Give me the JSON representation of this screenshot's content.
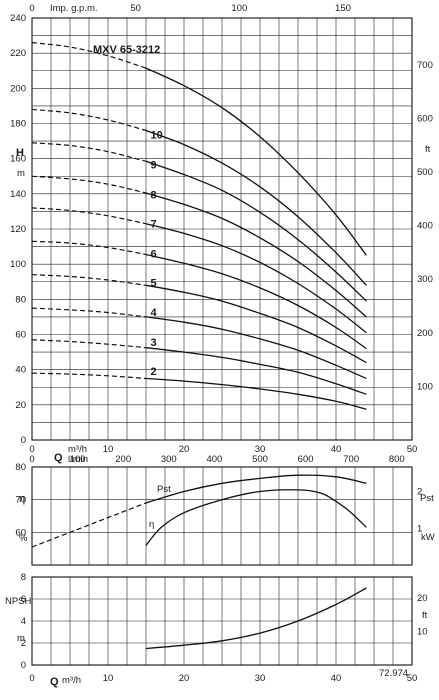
{
  "chart_data": [
    {
      "type": "line",
      "panel": "head",
      "title": "MXV 65-3212",
      "top_axis": {
        "label": "Imp. g.p.m.",
        "ticks": [
          0,
          50,
          100,
          150
        ]
      },
      "ylabel": "H",
      "yunit": "m",
      "ylim": [
        0,
        240
      ],
      "yticks": [
        0,
        20,
        40,
        60,
        80,
        100,
        120,
        140,
        160,
        180,
        200,
        220,
        240
      ],
      "right_axis": {
        "label": "ft",
        "ticks": [
          100,
          200,
          300,
          400,
          500,
          600,
          700
        ]
      },
      "xlabel": "Q",
      "xunit": "m³/h",
      "xlim": [
        0,
        50
      ],
      "xticks": [
        0,
        10,
        20,
        30,
        40,
        50
      ],
      "operating_start_x": 15,
      "series": [
        {
          "name": "2",
          "x": [
            0,
            5,
            10,
            15,
            20,
            25,
            30,
            35,
            40,
            44
          ],
          "y": [
            38,
            37.5,
            36.5,
            35,
            33.5,
            31.5,
            29,
            26,
            22,
            17.5
          ]
        },
        {
          "name": "3",
          "x": [
            0,
            5,
            10,
            15,
            20,
            25,
            30,
            35,
            40,
            44
          ],
          "y": [
            57,
            56,
            54.5,
            52.5,
            50,
            47,
            43,
            38.5,
            32,
            26
          ]
        },
        {
          "name": "4",
          "x": [
            0,
            5,
            10,
            15,
            20,
            25,
            30,
            35,
            40,
            44
          ],
          "y": [
            75,
            74,
            72.5,
            70,
            67,
            63,
            57.5,
            51,
            42.5,
            35
          ]
        },
        {
          "name": "5",
          "x": [
            0,
            5,
            10,
            15,
            20,
            25,
            30,
            35,
            40,
            44
          ],
          "y": [
            94,
            93,
            91,
            88,
            84,
            79,
            72,
            64,
            53.5,
            44
          ]
        },
        {
          "name": "6",
          "x": [
            0,
            5,
            10,
            15,
            20,
            25,
            30,
            35,
            40,
            44
          ],
          "y": [
            113,
            112,
            109.5,
            105.5,
            100.5,
            94.5,
            86.5,
            76.5,
            64,
            52
          ]
        },
        {
          "name": "7",
          "x": [
            0,
            5,
            10,
            15,
            20,
            25,
            30,
            35,
            40,
            44
          ],
          "y": [
            132,
            130.5,
            127.5,
            123,
            117.5,
            110.5,
            101,
            89,
            74.5,
            61
          ]
        },
        {
          "name": "8",
          "x": [
            0,
            5,
            10,
            15,
            20,
            25,
            30,
            35,
            40,
            44
          ],
          "y": [
            150,
            148.5,
            145.5,
            140.5,
            134,
            126,
            115,
            101.5,
            85,
            70
          ]
        },
        {
          "name": "9",
          "x": [
            0,
            5,
            10,
            15,
            20,
            25,
            30,
            35,
            40,
            44
          ],
          "y": [
            169,
            167.5,
            164,
            158.5,
            151,
            142,
            129.5,
            114,
            95.5,
            79
          ]
        },
        {
          "name": "10",
          "x": [
            0,
            5,
            10,
            15,
            20,
            25,
            30,
            35,
            40,
            44
          ],
          "y": [
            188,
            186,
            182,
            176,
            168,
            157.5,
            144,
            127,
            106.5,
            88
          ]
        },
        {
          "name": "",
          "x": [
            0,
            5,
            10,
            15,
            20,
            25,
            30,
            35,
            40,
            44
          ],
          "y": [
            226,
            223.5,
            218.5,
            211.5,
            201.5,
            189,
            172.5,
            152,
            128,
            105
          ]
        }
      ],
      "labels": [
        "2",
        "3",
        "4",
        "5",
        "6",
        "7",
        "8",
        "9",
        "10"
      ]
    },
    {
      "type": "line",
      "panel": "efficiency-power",
      "top_axis": {
        "label": "l/min",
        "ticks": [
          0,
          100,
          200,
          300,
          400,
          500,
          600,
          700,
          800
        ]
      },
      "ylabel": "η",
      "yunit": "%",
      "ylim": [
        50,
        80
      ],
      "yticks": [
        60,
        70,
        80
      ],
      "right_axis": {
        "label": "Pst",
        "unit": "kW",
        "ticks": [
          1,
          2
        ]
      },
      "xlim": [
        0,
        50
      ],
      "series": [
        {
          "name": "Pst",
          "x": [
            0,
            5,
            10,
            15,
            20,
            25,
            30,
            35,
            40,
            44
          ],
          "y": [
            55.5,
            60,
            64.5,
            69,
            72.5,
            75,
            76.5,
            77.5,
            77,
            75
          ]
        },
        {
          "name": "η",
          "x": [
            15,
            17,
            20,
            25,
            30,
            35,
            38,
            40,
            42,
            44
          ],
          "y": [
            56,
            61.5,
            66,
            70,
            72.5,
            73,
            72,
            69.5,
            66,
            61.5
          ]
        }
      ]
    },
    {
      "type": "line",
      "panel": "npsh",
      "ylabel": "NPSH",
      "yunit": "m",
      "ylim": [
        0,
        8
      ],
      "yticks": [
        0,
        2,
        4,
        6,
        8
      ],
      "right_axis": {
        "label": "ft",
        "ticks": [
          10,
          20
        ]
      },
      "xlabel": "Q",
      "xunit": "m³/h",
      "xlim": [
        0,
        50
      ],
      "xticks": [
        0,
        10,
        20,
        30,
        40,
        50
      ],
      "series": [
        {
          "name": "NPSH",
          "x": [
            15,
            20,
            25,
            30,
            35,
            40,
            44
          ],
          "y": [
            1.5,
            1.8,
            2.2,
            2.9,
            4,
            5.5,
            7
          ]
        }
      ],
      "annotation": "72.974"
    }
  ]
}
